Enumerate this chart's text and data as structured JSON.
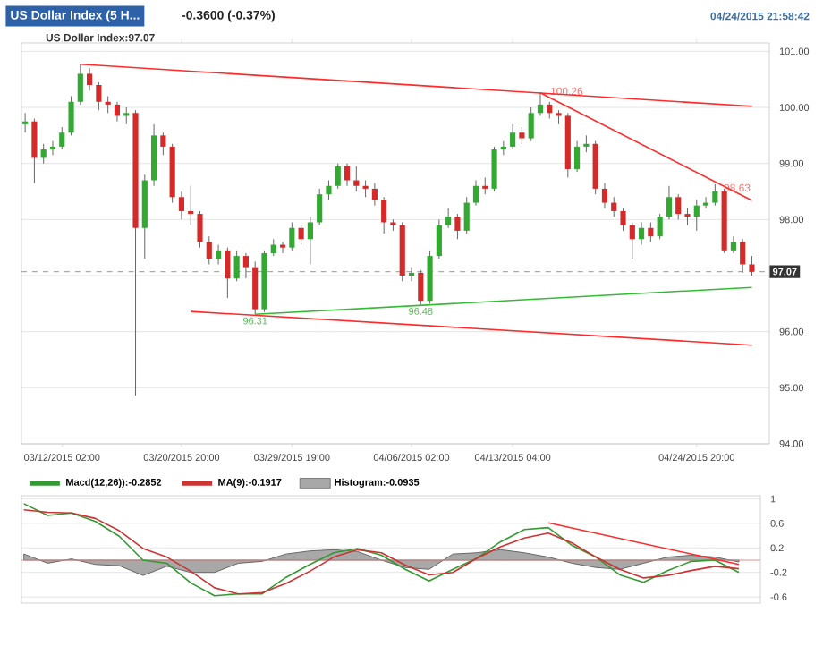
{
  "chart_data": [
    {
      "type": "candlestick",
      "title": "US Dollar Index (5 H...",
      "subtitle": "-0.3600 (-0.37%)",
      "categories": [
        null,
        null,
        null,
        null,
        "03/12/2015 02:00",
        null,
        null,
        null,
        null,
        null,
        null,
        null,
        null,
        null,
        null,
        null,
        null,
        "03/20/2015 20:00",
        null,
        null,
        null,
        null,
        null,
        null,
        null,
        null,
        null,
        null,
        null,
        "03/29/2015 19:00",
        null,
        null,
        null,
        null,
        null,
        null,
        null,
        null,
        null,
        null,
        null,
        null,
        "04/06/2015 02:00",
        null,
        null,
        null,
        null,
        null,
        null,
        null,
        null,
        null,
        null,
        "04/13/2015 04:00",
        null,
        null,
        null,
        null,
        null,
        null,
        null,
        null,
        null,
        null,
        null,
        null,
        null,
        null,
        null,
        null,
        null,
        null,
        null,
        "04/24/2015 20:00",
        null,
        null,
        null,
        null,
        null,
        null
      ],
      "ohlc": [
        [
          99.7,
          99.9,
          99.55,
          99.75
        ],
        [
          99.75,
          99.8,
          98.65,
          99.1
        ],
        [
          99.1,
          99.35,
          99.0,
          99.25
        ],
        [
          99.25,
          99.4,
          99.15,
          99.3
        ],
        [
          99.3,
          99.65,
          99.25,
          99.55
        ],
        [
          99.55,
          100.2,
          99.5,
          100.1
        ],
        [
          100.1,
          100.77,
          100.05,
          100.6
        ],
        [
          100.6,
          100.7,
          100.3,
          100.4
        ],
        [
          100.4,
          100.45,
          99.95,
          100.1
        ],
        [
          100.1,
          100.2,
          99.9,
          100.05
        ],
        [
          100.05,
          100.1,
          99.75,
          99.85
        ],
        [
          99.85,
          100.0,
          99.7,
          99.9
        ],
        [
          99.9,
          99.95,
          94.86,
          97.85
        ],
        [
          97.85,
          98.8,
          97.3,
          98.7
        ],
        [
          98.7,
          99.7,
          98.6,
          99.5
        ],
        [
          99.5,
          99.55,
          99.15,
          99.3
        ],
        [
          99.3,
          99.35,
          98.3,
          98.4
        ],
        [
          98.4,
          98.5,
          98.0,
          98.15
        ],
        [
          98.15,
          98.6,
          97.9,
          98.1
        ],
        [
          98.1,
          98.15,
          97.5,
          97.6
        ],
        [
          97.6,
          97.7,
          97.2,
          97.3
        ],
        [
          97.3,
          97.55,
          97.2,
          97.45
        ],
        [
          97.45,
          97.5,
          96.6,
          96.95
        ],
        [
          96.95,
          97.45,
          96.9,
          97.35
        ],
        [
          97.35,
          97.4,
          96.95,
          97.15
        ],
        [
          97.15,
          97.25,
          96.31,
          96.4
        ],
        [
          96.4,
          97.45,
          96.35,
          97.4
        ],
        [
          97.4,
          97.65,
          97.35,
          97.55
        ],
        [
          97.55,
          97.6,
          97.4,
          97.5
        ],
        [
          97.5,
          97.95,
          97.45,
          97.85
        ],
        [
          97.85,
          97.9,
          97.55,
          97.65
        ],
        [
          97.65,
          98.05,
          97.2,
          97.95
        ],
        [
          97.95,
          98.55,
          97.9,
          98.45
        ],
        [
          98.45,
          98.7,
          98.35,
          98.6
        ],
        [
          98.6,
          99.0,
          98.55,
          98.95
        ],
        [
          98.95,
          99.0,
          98.6,
          98.7
        ],
        [
          98.7,
          98.95,
          98.5,
          98.6
        ],
        [
          98.6,
          98.7,
          98.4,
          98.55
        ],
        [
          98.55,
          98.65,
          98.25,
          98.35
        ],
        [
          98.35,
          98.4,
          97.75,
          97.95
        ],
        [
          97.95,
          98.0,
          97.8,
          97.9
        ],
        [
          97.9,
          97.95,
          96.9,
          97.0
        ],
        [
          97.0,
          97.15,
          96.9,
          97.05
        ],
        [
          97.05,
          97.1,
          96.48,
          96.55
        ],
        [
          96.55,
          97.45,
          96.5,
          97.35
        ],
        [
          97.35,
          98.0,
          97.3,
          97.9
        ],
        [
          97.9,
          98.2,
          97.85,
          98.05
        ],
        [
          98.05,
          98.1,
          97.65,
          97.8
        ],
        [
          97.8,
          98.4,
          97.75,
          98.3
        ],
        [
          98.3,
          98.7,
          98.25,
          98.6
        ],
        [
          98.6,
          98.75,
          98.45,
          98.55
        ],
        [
          98.55,
          99.3,
          98.5,
          99.25
        ],
        [
          99.25,
          99.4,
          99.15,
          99.3
        ],
        [
          99.3,
          99.7,
          99.25,
          99.55
        ],
        [
          99.55,
          99.65,
          99.35,
          99.45
        ],
        [
          99.45,
          100.0,
          99.4,
          99.9
        ],
        [
          99.9,
          100.26,
          99.85,
          100.05
        ],
        [
          100.05,
          100.1,
          99.8,
          99.9
        ],
        [
          99.9,
          99.95,
          99.7,
          99.85
        ],
        [
          99.85,
          99.9,
          98.75,
          98.9
        ],
        [
          98.9,
          99.4,
          98.85,
          99.3
        ],
        [
          99.3,
          99.5,
          99.2,
          99.35
        ],
        [
          99.35,
          99.4,
          98.45,
          98.55
        ],
        [
          98.55,
          98.65,
          98.2,
          98.3
        ],
        [
          98.3,
          98.4,
          98.05,
          98.15
        ],
        [
          98.15,
          98.2,
          97.8,
          97.9
        ],
        [
          97.9,
          97.95,
          97.3,
          97.65
        ],
        [
          97.65,
          97.95,
          97.55,
          97.85
        ],
        [
          97.85,
          97.95,
          97.6,
          97.7
        ],
        [
          97.7,
          98.1,
          97.65,
          98.05
        ],
        [
          98.05,
          98.6,
          98.0,
          98.4
        ],
        [
          98.4,
          98.45,
          98.0,
          98.1
        ],
        [
          98.1,
          98.2,
          97.9,
          98.05
        ],
        [
          98.05,
          98.35,
          97.8,
          98.25
        ],
        [
          98.25,
          98.4,
          98.2,
          98.3
        ],
        [
          98.3,
          98.63,
          98.25,
          98.5
        ],
        [
          98.5,
          98.55,
          97.4,
          97.45
        ],
        [
          97.45,
          97.7,
          97.4,
          97.6
        ],
        [
          97.6,
          97.65,
          97.05,
          97.2
        ],
        [
          97.2,
          97.35,
          97.0,
          97.07
        ]
      ],
      "colors": [
        "#33a833",
        "#d42a2a",
        "#33a833",
        "#33a833",
        "#33a833",
        "#33a833",
        "#33a833",
        "#d42a2a",
        "#d42a2a",
        "#d42a2a",
        "#d42a2a",
        "#33a833",
        "#d42a2a",
        "#33a833",
        "#33a833",
        "#d42a2a",
        "#d42a2a",
        "#d42a2a",
        "#d42a2a",
        "#d42a2a",
        "#d42a2a",
        "#33a833",
        "#d42a2a",
        "#33a833",
        "#d42a2a",
        "#d42a2a",
        "#33a833",
        "#33a833",
        "#d42a2a",
        "#33a833",
        "#d42a2a",
        "#33a833",
        "#33a833",
        "#33a833",
        "#33a833",
        "#d42a2a",
        "#d42a2a",
        "#d42a2a",
        "#d42a2a",
        "#d42a2a",
        "#d42a2a",
        "#d42a2a",
        "#33a833",
        "#d42a2a",
        "#33a833",
        "#33a833",
        "#33a833",
        "#d42a2a",
        "#33a833",
        "#33a833",
        "#d42a2a",
        "#33a833",
        "#33a833",
        "#33a833",
        "#d42a2a",
        "#33a833",
        "#33a833",
        "#d42a2a",
        "#d42a2a",
        "#d42a2a",
        "#33a833",
        "#33a833",
        "#d42a2a",
        "#d42a2a",
        "#d42a2a",
        "#d42a2a",
        "#d42a2a",
        "#33a833",
        "#d42a2a",
        "#33a833",
        "#33a833",
        "#d42a2a",
        "#d42a2a",
        "#33a833",
        "#33a833",
        "#33a833",
        "#d42a2a",
        "#33a833",
        "#d42a2a",
        "#d42a2a"
      ],
      "series": [
        {
          "type": "line",
          "color": "#ff2a2a",
          "values": [
            null,
            null,
            null,
            null,
            null,
            null,
            100.77,
            null,
            null,
            null,
            null,
            null,
            null,
            null,
            null,
            null,
            null,
            null,
            null,
            null,
            null,
            null,
            null,
            null,
            null,
            null,
            null,
            null,
            null,
            null,
            null,
            null,
            null,
            null,
            null,
            null,
            null,
            null,
            null,
            null,
            null,
            null,
            null,
            null,
            null,
            null,
            null,
            null,
            null,
            null,
            null,
            null,
            null,
            null,
            null,
            null,
            null,
            null,
            null,
            null,
            null,
            null,
            null,
            null,
            null,
            null,
            null,
            null,
            null,
            null,
            null,
            null,
            null,
            null,
            null,
            null,
            null,
            null,
            null,
            100.02
          ]
        },
        {
          "type": "line",
          "color": "#ff2a2a",
          "values": [
            null,
            null,
            null,
            null,
            null,
            null,
            null,
            null,
            null,
            null,
            null,
            null,
            null,
            null,
            null,
            null,
            null,
            null,
            null,
            null,
            null,
            null,
            null,
            null,
            null,
            null,
            null,
            null,
            null,
            null,
            null,
            null,
            null,
            null,
            null,
            null,
            null,
            null,
            null,
            null,
            null,
            null,
            null,
            null,
            null,
            null,
            null,
            null,
            null,
            null,
            null,
            null,
            null,
            null,
            null,
            null,
            100.26,
            null,
            null,
            null,
            null,
            null,
            null,
            null,
            null,
            null,
            null,
            null,
            null,
            null,
            null,
            null,
            null,
            null,
            null,
            null,
            null,
            null,
            null,
            98.34
          ]
        },
        {
          "type": "line",
          "color": "#ff2a2a",
          "values": [
            null,
            null,
            null,
            null,
            null,
            null,
            null,
            null,
            null,
            null,
            null,
            null,
            null,
            null,
            null,
            null,
            null,
            null,
            96.36,
            null,
            null,
            null,
            null,
            null,
            null,
            null,
            null,
            null,
            null,
            null,
            null,
            null,
            null,
            null,
            null,
            null,
            null,
            null,
            null,
            null,
            null,
            null,
            null,
            null,
            null,
            null,
            null,
            null,
            null,
            null,
            null,
            null,
            null,
            null,
            null,
            null,
            null,
            null,
            null,
            null,
            null,
            null,
            null,
            null,
            null,
            null,
            null,
            null,
            null,
            null,
            null,
            null,
            null,
            null,
            null,
            null,
            null,
            null,
            null,
            95.76
          ]
        },
        {
          "type": "line",
          "color": "#33bb33",
          "values": [
            null,
            null,
            null,
            null,
            null,
            null,
            null,
            null,
            null,
            null,
            null,
            null,
            null,
            null,
            null,
            null,
            null,
            null,
            null,
            null,
            null,
            null,
            null,
            null,
            null,
            96.31,
            null,
            null,
            null,
            null,
            null,
            null,
            null,
            null,
            null,
            null,
            null,
            null,
            null,
            null,
            null,
            null,
            null,
            null,
            null,
            null,
            null,
            null,
            null,
            null,
            null,
            null,
            null,
            null,
            null,
            null,
            null,
            null,
            null,
            null,
            null,
            null,
            null,
            null,
            null,
            null,
            null,
            null,
            null,
            null,
            null,
            null,
            null,
            null,
            null,
            null,
            null,
            null,
            null,
            96.79
          ]
        }
      ],
      "ylim": [
        94,
        101.15
      ],
      "yticks": [
        {
          "value": 94,
          "label": "94.00"
        },
        {
          "value": 95,
          "label": "95.00"
        },
        {
          "value": 96,
          "label": "96.00"
        },
        {
          "value": 97,
          "label": null
        },
        {
          "value": 98,
          "label": "98.00"
        },
        {
          "value": 99,
          "label": "99.00"
        },
        {
          "value": 100,
          "label": "100.00"
        },
        {
          "value": 101,
          "label": "101.00"
        }
      ],
      "ref_lines": [
        {
          "axis": "y",
          "value": 97.07,
          "label": "97.07",
          "color": "#aaaaaa",
          "line_style": "dashed"
        }
      ],
      "annotations": [
        "04/24/2015 21:58:42",
        "US Dollar Index:97.07",
        "100.26",
        {
          "text": "96.31",
          "y": 96.31
        },
        {
          "text": "96.48",
          "y": 96.48
        },
        "98.63"
      ],
      "grid": "y"
    },
    {
      "type": "line",
      "categories": [
        null,
        null,
        null,
        null,
        null,
        null,
        null,
        null,
        null,
        null,
        null,
        null,
        null,
        null,
        null,
        null,
        null,
        null,
        null,
        null,
        null,
        null,
        null,
        null,
        null,
        null,
        null,
        null,
        null,
        null,
        null
      ],
      "series": [
        {
          "name": "Macd(12,26)):-0.2852",
          "color": "#339933",
          "values": [
            0.92,
            0.73,
            0.77,
            0.63,
            0.39,
            0.0,
            -0.05,
            -0.37,
            -0.58,
            -0.55,
            -0.55,
            -0.28,
            -0.07,
            0.12,
            0.19,
            0.08,
            -0.15,
            -0.34,
            -0.15,
            0.03,
            0.3,
            0.5,
            0.53,
            0.24,
            0.05,
            -0.24,
            -0.36,
            -0.17,
            -0.02,
            0.0,
            -0.2
          ]
        },
        {
          "name": "MA(9):-0.1917",
          "color": "#cc3333",
          "values": [
            0.82,
            0.78,
            0.77,
            0.68,
            0.48,
            0.19,
            0.05,
            -0.18,
            -0.45,
            -0.55,
            -0.53,
            -0.38,
            -0.18,
            0.05,
            0.17,
            0.12,
            -0.08,
            -0.24,
            -0.2,
            0.03,
            0.22,
            0.36,
            0.44,
            0.28,
            0.05,
            -0.15,
            -0.29,
            -0.25,
            -0.17,
            -0.1,
            -0.14
          ]
        },
        {
          "name": "Histogram:-0.0935",
          "type": "area",
          "color": "#a8a8a8",
          "values": [
            0.1,
            -0.05,
            0.02,
            -0.07,
            -0.09,
            -0.25,
            -0.1,
            -0.2,
            -0.2,
            -0.05,
            -0.02,
            0.1,
            0.15,
            0.17,
            0.14,
            0.0,
            -0.12,
            -0.15,
            0.1,
            0.12,
            0.17,
            0.12,
            0.05,
            -0.05,
            -0.12,
            -0.15,
            -0.05,
            0.05,
            0.08,
            0.05,
            -0.03
          ]
        },
        {
          "type": "line",
          "color": "#ff2a2a",
          "values": [
            null,
            null,
            null,
            null,
            null,
            null,
            null,
            null,
            null,
            null,
            null,
            null,
            null,
            null,
            null,
            null,
            null,
            null,
            null,
            null,
            null,
            null,
            0.61,
            null,
            null,
            null,
            null,
            null,
            null,
            null,
            -0.07
          ]
        }
      ],
      "ylim": [
        -0.7,
        1.05
      ],
      "yticks": [
        1,
        0.6,
        0.2,
        -0.2,
        -0.6
      ],
      "ref_lines": [
        {
          "axis": "y",
          "value": 0,
          "color": "#e09090"
        }
      ],
      "tick_labels": "y",
      "legend": "top left",
      "grid": "y"
    }
  ]
}
